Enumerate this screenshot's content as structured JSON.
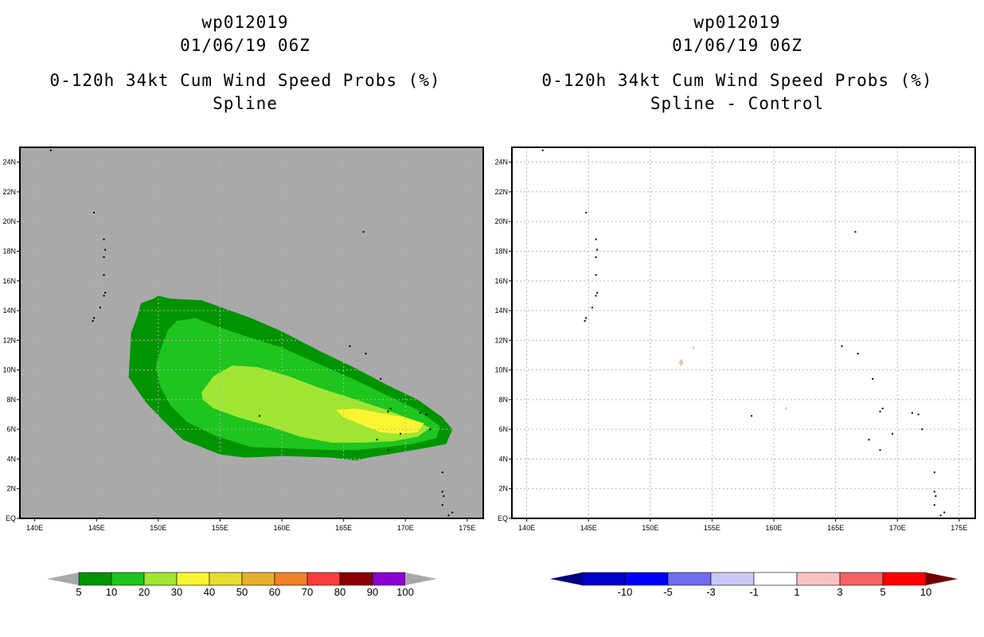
{
  "left": {
    "title": {
      "line1": "wp012019",
      "line2": "01/06/19 06Z",
      "line3": "0-120h 34kt Cum Wind Speed Probs (%)",
      "line4": "Spline"
    },
    "chart_data": {
      "type": "heatmap",
      "title": "0-120h 34kt Cum Wind Speed Probs (%) Spline",
      "x_tick_labels": [
        "140E",
        "145E",
        "150E",
        "155E",
        "160E",
        "165E",
        "170E",
        "175E"
      ],
      "x_ticks": [
        140,
        145,
        150,
        155,
        160,
        165,
        170,
        175
      ],
      "y_tick_labels": [
        "EQ",
        "2N",
        "4N",
        "6N",
        "8N",
        "10N",
        "12N",
        "14N",
        "16N",
        "18N",
        "20N",
        "22N",
        "24N"
      ],
      "y_ticks": [
        0,
        2,
        4,
        6,
        8,
        10,
        12,
        14,
        16,
        18,
        20,
        22,
        24
      ],
      "xlim": [
        138.8,
        176.3
      ],
      "ylim": [
        0,
        25
      ],
      "background_color": "#a9a9a9",
      "contour_levels": [
        5,
        10,
        20,
        30
      ],
      "contour_colors": [
        "#009400",
        "#1ec51e",
        "#a0e632",
        "#faf532"
      ],
      "colorbar": {
        "labels": [
          "5",
          "10",
          "20",
          "30",
          "40",
          "50",
          "60",
          "70",
          "80",
          "90",
          "100"
        ],
        "colors": [
          "#009400",
          "#1ec51e",
          "#a0e632",
          "#faf532",
          "#e6dc32",
          "#e6af2d",
          "#f08228",
          "#fa3c3c",
          "#8b0000",
          "#8c00d2"
        ],
        "under_color": "#a9a9a9",
        "over_color": "#a9a9a9"
      }
    }
  },
  "right": {
    "title": {
      "line1": "wp012019",
      "line2": "01/06/19 06Z",
      "line3": "0-120h 34kt Cum Wind Speed Probs (%)",
      "line4": "Spline - Control"
    },
    "chart_data": {
      "type": "heatmap",
      "title": "0-120h 34kt Cum Wind Speed Probs (%) Spline - Control",
      "x_tick_labels": [
        "140E",
        "145E",
        "150E",
        "155E",
        "160E",
        "165E",
        "170E",
        "175E"
      ],
      "x_ticks": [
        140,
        145,
        150,
        155,
        160,
        165,
        170,
        175
      ],
      "y_tick_labels": [
        "EQ",
        "2N",
        "4N",
        "6N",
        "8N",
        "10N",
        "12N",
        "14N",
        "16N",
        "18N",
        "20N",
        "22N",
        "24N"
      ],
      "y_ticks": [
        0,
        2,
        4,
        6,
        8,
        10,
        12,
        14,
        16,
        18,
        20,
        22,
        24
      ],
      "xlim": [
        138.8,
        176.3
      ],
      "ylim": [
        0,
        25
      ],
      "grid": true,
      "difference_spots": [
        {
          "lon": 152.5,
          "lat": 10.5,
          "level": "1 to 3"
        },
        {
          "lon": 153.5,
          "lat": 11.5,
          "level": "1 to 3"
        },
        {
          "lon": 161.0,
          "lat": 7.4,
          "level": "1 to 3"
        }
      ],
      "colorbar": {
        "labels": [
          "-10",
          "-5",
          "-3",
          "-1",
          "1",
          "3",
          "5",
          "10"
        ],
        "colors": [
          "#0000c8",
          "#0000ff",
          "#6e6ef0",
          "#c8c8f5",
          "#ffffff",
          "#fac3c3",
          "#f56464",
          "#ff0000"
        ],
        "under_color": "#000080",
        "over_color": "#6e0000"
      }
    }
  },
  "islands": [
    [
      141.3,
      24.8
    ],
    [
      144.8,
      20.6
    ],
    [
      145.6,
      18.8
    ],
    [
      145.7,
      18.1
    ],
    [
      145.6,
      17.6
    ],
    [
      145.6,
      16.4
    ],
    [
      145.7,
      15.2
    ],
    [
      145.6,
      15.0
    ],
    [
      145.3,
      14.2
    ],
    [
      144.8,
      13.5
    ],
    [
      144.7,
      13.3
    ],
    [
      166.6,
      19.3
    ],
    [
      165.5,
      11.6
    ],
    [
      166.8,
      11.1
    ],
    [
      168.0,
      9.4
    ],
    [
      168.8,
      7.4
    ],
    [
      168.6,
      7.2
    ],
    [
      171.2,
      7.1
    ],
    [
      171.7,
      7.0
    ],
    [
      172.0,
      6.0
    ],
    [
      169.6,
      5.7
    ],
    [
      167.7,
      5.3
    ],
    [
      168.6,
      4.6
    ],
    [
      158.2,
      6.9
    ],
    [
      173.0,
      3.1
    ],
    [
      173.0,
      1.8
    ],
    [
      173.1,
      1.5
    ],
    [
      173.0,
      0.9
    ],
    [
      173.5,
      0.2
    ],
    [
      173.8,
      0.4
    ]
  ]
}
